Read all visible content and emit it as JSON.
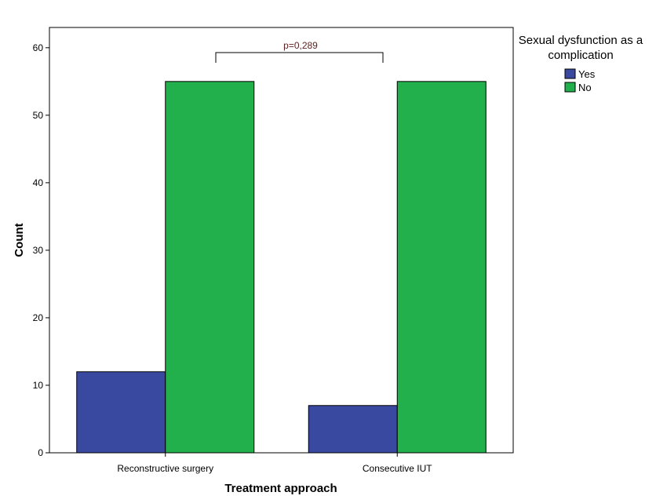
{
  "chart_data": {
    "type": "bar",
    "categories": [
      "Reconstructive surgery",
      "Consecutive IUT"
    ],
    "series": [
      {
        "name": "Yes",
        "values": [
          12,
          7
        ],
        "color": "#3A49A0"
      },
      {
        "name": "No",
        "values": [
          55,
          55
        ],
        "color": "#21B04B"
      }
    ],
    "xlabel": "Treatment approach",
    "ylabel": "Count",
    "ylim": [
      0,
      63
    ],
    "yticks": [
      0,
      10,
      20,
      30,
      40,
      50,
      60
    ],
    "legend": {
      "title_lines": [
        "Sexual dysfunction as a",
        "complication"
      ],
      "placement": "top-right, outside plot"
    },
    "annotation": {
      "text": "p=0,289",
      "type": "bracket between categories"
    },
    "grid": false,
    "plot_background": "#ffffff",
    "bar_outline": "#000000"
  }
}
